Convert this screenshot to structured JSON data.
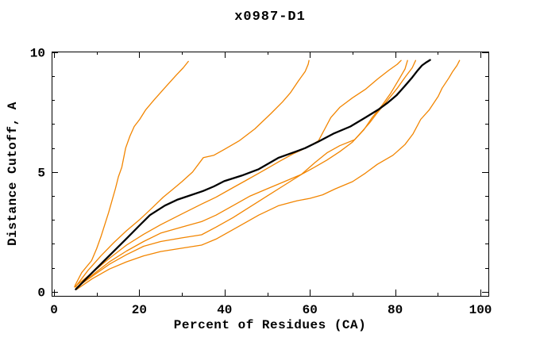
{
  "title": "x0987-D1",
  "axes": {
    "xlabel": "Percent of Residues (CA)",
    "ylabel": "Distance Cutoff, A"
  },
  "colors": {
    "curve_orange": "#f28500",
    "curve_black": "#000000",
    "axis": "#000000",
    "background": "#ffffff"
  },
  "chart_data": {
    "type": "line",
    "title": "x0987-D1",
    "xlabel": "Percent of Residues (CA)",
    "ylabel": "Distance Cutoff, A",
    "xlim": [
      -0.56,
      101.86
    ],
    "ylim": [
      -0.17,
      10.03
    ],
    "grid": false,
    "legend": "none",
    "x_ticks_major": [
      0,
      20,
      40,
      60,
      80,
      100
    ],
    "x_tick_labels": [
      "0",
      "20",
      "40",
      "60",
      "80",
      "100"
    ],
    "x_ticks_minor": [
      10,
      30,
      50,
      70,
      90
    ],
    "y_ticks_major": [
      0,
      5,
      10
    ],
    "y_tick_labels": [
      "0",
      "5",
      "10"
    ],
    "y_ticks_minor": [
      1,
      2,
      3,
      4,
      6,
      7,
      8,
      9
    ],
    "series": [
      {
        "name": "orange-1",
        "color": "#f28500",
        "width": 1.3,
        "points": [
          [
            4.9,
            0.25
          ],
          [
            6.5,
            0.8
          ],
          [
            8.8,
            1.3
          ],
          [
            10,
            1.8
          ],
          [
            11,
            2.3
          ],
          [
            11.9,
            2.8
          ],
          [
            12.8,
            3.3
          ],
          [
            13.6,
            3.8
          ],
          [
            14.4,
            4.3
          ],
          [
            15.1,
            4.8
          ],
          [
            15.9,
            5.2
          ],
          [
            16.8,
            6.0
          ],
          [
            17.8,
            6.5
          ],
          [
            18.8,
            6.9
          ],
          [
            20.1,
            7.2
          ],
          [
            21.5,
            7.6
          ],
          [
            23.4,
            8.0
          ],
          [
            25.9,
            8.5
          ],
          [
            28.7,
            9.05
          ],
          [
            30.3,
            9.35
          ],
          [
            31.5,
            9.62
          ]
        ]
      },
      {
        "name": "orange-2",
        "color": "#f28500",
        "width": 1.3,
        "points": [
          [
            5,
            0.2
          ],
          [
            8,
            0.9
          ],
          [
            11,
            1.5
          ],
          [
            14,
            2.05
          ],
          [
            17,
            2.55
          ],
          [
            20,
            3.0
          ],
          [
            23,
            3.5
          ],
          [
            25.6,
            3.95
          ],
          [
            28,
            4.3
          ],
          [
            30,
            4.6
          ],
          [
            32.5,
            5.0
          ],
          [
            35,
            5.6
          ],
          [
            37.5,
            5.7
          ],
          [
            40,
            5.95
          ],
          [
            43.4,
            6.3
          ],
          [
            47.1,
            6.8
          ],
          [
            50.8,
            7.43
          ],
          [
            53.6,
            7.93
          ],
          [
            55.4,
            8.3
          ],
          [
            57.3,
            8.8
          ],
          [
            58.9,
            9.2
          ],
          [
            59.6,
            9.5
          ],
          [
            59.8,
            9.66
          ]
        ]
      },
      {
        "name": "orange-3",
        "color": "#f28500",
        "width": 1.3,
        "points": [
          [
            4.8,
            0.2
          ],
          [
            9,
            0.8
          ],
          [
            13,
            1.4
          ],
          [
            17,
            1.95
          ],
          [
            21,
            2.4
          ],
          [
            25,
            2.8
          ],
          [
            30,
            3.25
          ],
          [
            34.6,
            3.66
          ],
          [
            38,
            3.95
          ],
          [
            42,
            4.35
          ],
          [
            45,
            4.65
          ],
          [
            48,
            4.95
          ],
          [
            50.5,
            5.2
          ],
          [
            52.7,
            5.43
          ],
          [
            56,
            5.75
          ],
          [
            59,
            6.0
          ],
          [
            62,
            6.3
          ],
          [
            63.5,
            6.8
          ],
          [
            64.9,
            7.27
          ],
          [
            67,
            7.7
          ],
          [
            70,
            8.1
          ],
          [
            73,
            8.45
          ],
          [
            76,
            8.9
          ],
          [
            78.5,
            9.25
          ],
          [
            80.5,
            9.5
          ],
          [
            81.4,
            9.66
          ]
        ]
      },
      {
        "name": "orange-4",
        "color": "#f28500",
        "width": 1.3,
        "points": [
          [
            5.2,
            0.15
          ],
          [
            9,
            0.7
          ],
          [
            13,
            1.25
          ],
          [
            17,
            1.7
          ],
          [
            21,
            2.1
          ],
          [
            25,
            2.45
          ],
          [
            30,
            2.7
          ],
          [
            34.6,
            2.93
          ],
          [
            38,
            3.2
          ],
          [
            42,
            3.6
          ],
          [
            46,
            4.0
          ],
          [
            50,
            4.3
          ],
          [
            54,
            4.6
          ],
          [
            58,
            4.9
          ],
          [
            61.1,
            5.38
          ],
          [
            64,
            5.8
          ],
          [
            67,
            6.1
          ],
          [
            70.5,
            6.35
          ],
          [
            72.7,
            6.77
          ],
          [
            74.6,
            7.27
          ],
          [
            77,
            7.8
          ],
          [
            79,
            8.3
          ],
          [
            81,
            8.9
          ],
          [
            82.3,
            9.3
          ],
          [
            82.9,
            9.66
          ]
        ]
      },
      {
        "name": "orange-5",
        "color": "#f28500",
        "width": 1.3,
        "points": [
          [
            5.4,
            0.2
          ],
          [
            9,
            0.65
          ],
          [
            13,
            1.15
          ],
          [
            17,
            1.55
          ],
          [
            21,
            1.9
          ],
          [
            25,
            2.1
          ],
          [
            30,
            2.25
          ],
          [
            34.6,
            2.38
          ],
          [
            38,
            2.7
          ],
          [
            42,
            3.1
          ],
          [
            46,
            3.55
          ],
          [
            50,
            4.0
          ],
          [
            54,
            4.45
          ],
          [
            58,
            4.9
          ],
          [
            61.1,
            5.2
          ],
          [
            64,
            5.5
          ],
          [
            67,
            5.85
          ],
          [
            70,
            6.25
          ],
          [
            72,
            6.65
          ],
          [
            74,
            7.05
          ],
          [
            75.5,
            7.4
          ],
          [
            78,
            7.95
          ],
          [
            80.5,
            8.5
          ],
          [
            82.5,
            9.0
          ],
          [
            84,
            9.35
          ],
          [
            84.8,
            9.66
          ]
        ]
      },
      {
        "name": "orange-6",
        "color": "#f28500",
        "width": 1.3,
        "points": [
          [
            5.3,
            0.1
          ],
          [
            9,
            0.55
          ],
          [
            13,
            0.95
          ],
          [
            17,
            1.25
          ],
          [
            21,
            1.5
          ],
          [
            25,
            1.68
          ],
          [
            30,
            1.82
          ],
          [
            34.6,
            1.95
          ],
          [
            38,
            2.2
          ],
          [
            42,
            2.6
          ],
          [
            45,
            2.9
          ],
          [
            48,
            3.2
          ],
          [
            52.7,
            3.6
          ],
          [
            57,
            3.8
          ],
          [
            60,
            3.9
          ],
          [
            63,
            4.05
          ],
          [
            66,
            4.3
          ],
          [
            70,
            4.6
          ],
          [
            73,
            4.95
          ],
          [
            75.8,
            5.32
          ],
          [
            79.5,
            5.7
          ],
          [
            82.3,
            6.15
          ],
          [
            84.2,
            6.6
          ],
          [
            86,
            7.2
          ],
          [
            88,
            7.6
          ],
          [
            90.1,
            8.16
          ],
          [
            91,
            8.5
          ],
          [
            92.6,
            8.93
          ],
          [
            93.5,
            9.2
          ],
          [
            94.5,
            9.45
          ],
          [
            95.1,
            9.66
          ]
        ]
      },
      {
        "name": "black-model",
        "color": "#000000",
        "width": 2.3,
        "points": [
          [
            5.1,
            0.1
          ],
          [
            8,
            0.63
          ],
          [
            11,
            1.16
          ],
          [
            14,
            1.69
          ],
          [
            17,
            2.22
          ],
          [
            20,
            2.76
          ],
          [
            22.5,
            3.2
          ],
          [
            26,
            3.6
          ],
          [
            29,
            3.85
          ],
          [
            31,
            3.97
          ],
          [
            35,
            4.21
          ],
          [
            37.5,
            4.4
          ],
          [
            39.9,
            4.62
          ],
          [
            44,
            4.85
          ],
          [
            48,
            5.12
          ],
          [
            52.7,
            5.6
          ],
          [
            56.8,
            5.86
          ],
          [
            58.9,
            6.0
          ],
          [
            62,
            6.27
          ],
          [
            65.5,
            6.6
          ],
          [
            69.5,
            6.9
          ],
          [
            73,
            7.27
          ],
          [
            76,
            7.6
          ],
          [
            78.3,
            7.9
          ],
          [
            80.3,
            8.2
          ],
          [
            82.3,
            8.6
          ],
          [
            84,
            8.95
          ],
          [
            85.3,
            9.25
          ],
          [
            86.3,
            9.45
          ],
          [
            87.3,
            9.58
          ],
          [
            88.2,
            9.68
          ]
        ]
      }
    ]
  }
}
